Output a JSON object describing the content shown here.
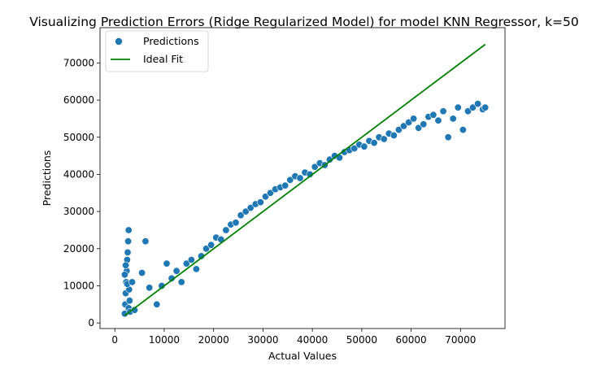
{
  "chart_data": {
    "type": "scatter",
    "title": "Visualizing Prediction Errors (Ridge Regularized Model) for model KNN Regressor, k=50",
    "xlabel": "Actual Values",
    "ylabel": "Predictions",
    "xlim": [
      -3000,
      79000
    ],
    "ylim": [
      -1500,
      79500
    ],
    "x_ticks": [
      0,
      10000,
      20000,
      30000,
      40000,
      50000,
      60000,
      70000
    ],
    "x_tick_labels": [
      "0",
      "10000",
      "20000",
      "30000",
      "40000",
      "50000",
      "60000",
      "70000"
    ],
    "y_ticks": [
      0,
      10000,
      20000,
      30000,
      40000,
      50000,
      60000,
      70000
    ],
    "y_tick_labels": [
      "0",
      "10000",
      "20000",
      "30000",
      "40000",
      "50000",
      "60000",
      "70000"
    ],
    "grid": false,
    "legend_position": "top-left",
    "series": [
      {
        "name": "Predictions",
        "kind": "scatter",
        "color": "#1f77b4",
        "note_points_sampled": true,
        "x": [
          2000,
          2100,
          2200,
          2300,
          2400,
          2500,
          2600,
          2700,
          2800,
          2900,
          3000,
          2000,
          2200,
          2500,
          2800,
          3100,
          3500,
          4000,
          5500,
          6200,
          7000,
          8500,
          9500,
          10500,
          11500,
          12500,
          13500,
          14500,
          15500,
          16500,
          17500,
          18500,
          19500,
          20500,
          21500,
          22500,
          23500,
          24500,
          25500,
          26500,
          27500,
          28500,
          29500,
          30500,
          31500,
          32500,
          33500,
          34500,
          35500,
          36500,
          37500,
          38500,
          39500,
          40500,
          41500,
          42500,
          43500,
          44500,
          45500,
          46500,
          47500,
          48500,
          49500,
          50500,
          51500,
          52500,
          53500,
          54500,
          55500,
          56500,
          57500,
          58500,
          59500,
          60500,
          61500,
          62500,
          63500,
          64500,
          65500,
          66500,
          67500,
          68500,
          69500,
          70500,
          71500,
          72500,
          73500,
          74500,
          75000
        ],
        "y": [
          2500,
          5000,
          8000,
          11000,
          14000,
          17000,
          19000,
          22000,
          25000,
          9000,
          6000,
          13000,
          15500,
          10500,
          4000,
          3000,
          11000,
          3500,
          13500,
          22000,
          9500,
          5000,
          10000,
          16000,
          12000,
          14000,
          11000,
          16000,
          17000,
          14500,
          18000,
          20000,
          21000,
          23000,
          22500,
          25000,
          26500,
          27000,
          29000,
          30000,
          31000,
          32000,
          32500,
          34000,
          35000,
          36000,
          36500,
          37000,
          38500,
          39500,
          39000,
          40500,
          40000,
          42000,
          43000,
          42500,
          44000,
          45000,
          44500,
          46000,
          46500,
          47000,
          48000,
          47500,
          49000,
          48500,
          50000,
          49500,
          51000,
          50500,
          52000,
          53000,
          54000,
          55000,
          52500,
          53500,
          55500,
          56000,
          54500,
          57000,
          50000,
          55000,
          58000,
          52000,
          57000,
          58000,
          59000,
          57500,
          58000
        ]
      },
      {
        "name": "Ideal Fit",
        "kind": "line",
        "color": "#008000",
        "x": [
          2000,
          75000
        ],
        "y": [
          2000,
          75000
        ]
      }
    ]
  }
}
